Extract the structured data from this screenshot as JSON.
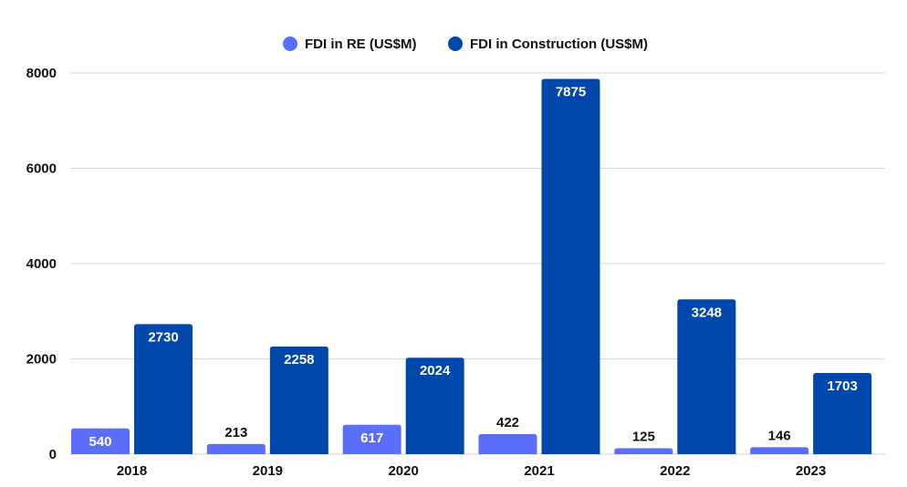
{
  "chart_data": {
    "type": "bar",
    "title": "",
    "xlabel": "",
    "ylabel": "",
    "categories": [
      "2018",
      "2019",
      "2020",
      "2021",
      "2022",
      "2023"
    ],
    "series": [
      {
        "name": "FDI in RE (US$M)",
        "color": "#5b6ef9",
        "label_color_inside": "#ffffff",
        "values": [
          540,
          213,
          617,
          422,
          125,
          146
        ]
      },
      {
        "name": "FDI in Construction (US$M)",
        "color": "#0047ab",
        "label_color_inside": "#ffffff",
        "values": [
          2730,
          2258,
          2024,
          7875,
          3248,
          1703
        ]
      }
    ],
    "ylim": [
      0,
      8000
    ],
    "yticks": [
      0,
      2000,
      4000,
      6000,
      8000
    ],
    "grid": true,
    "legend_position": "top-center"
  }
}
